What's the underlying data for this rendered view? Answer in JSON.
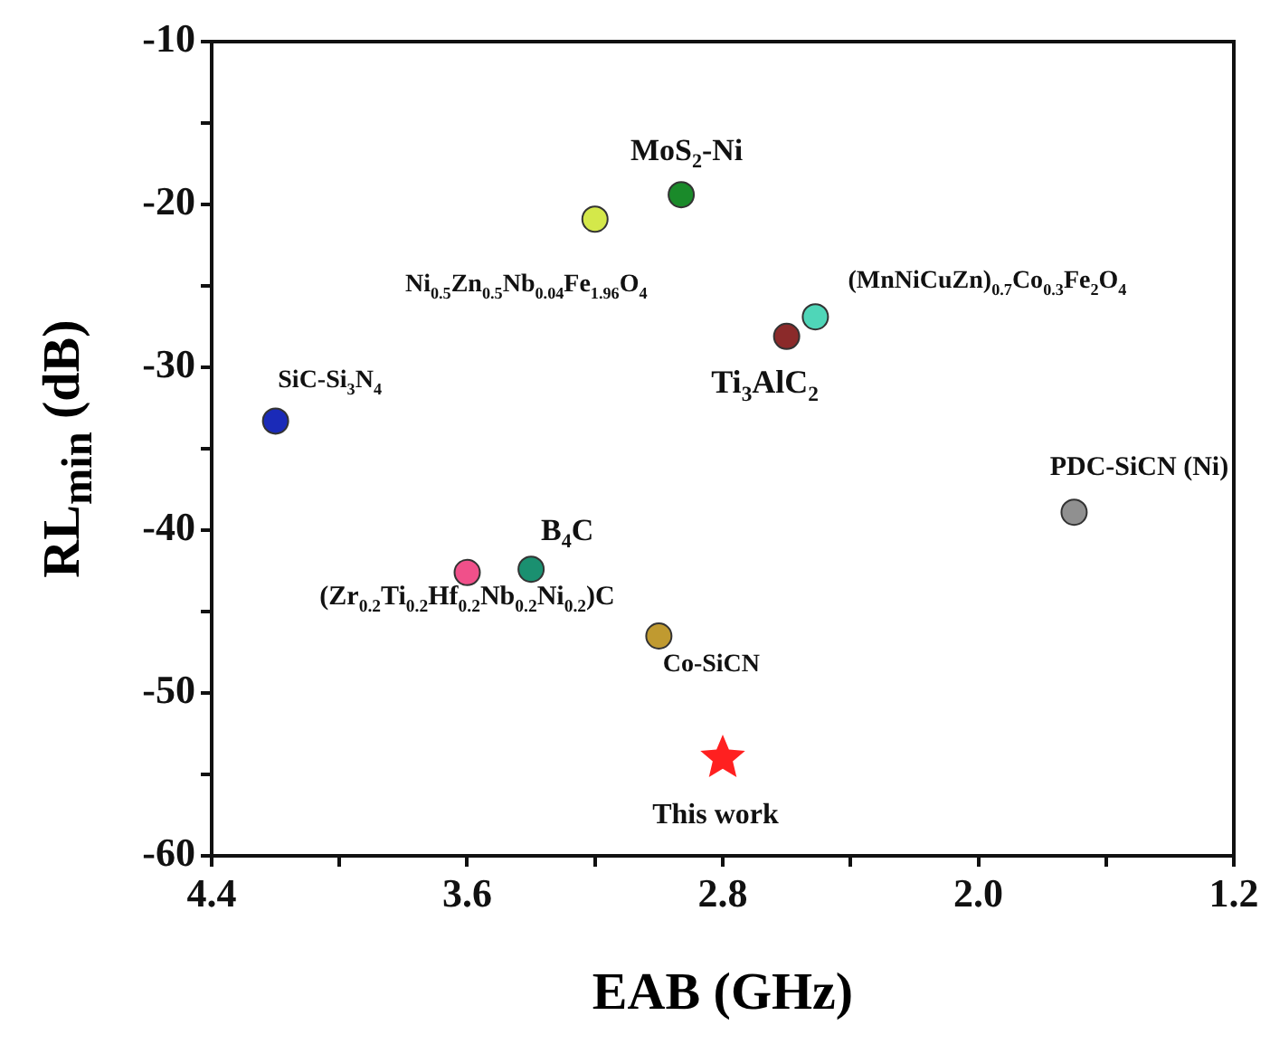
{
  "chart_data": {
    "type": "scatter",
    "xlabel": "EAB (GHz)",
    "ylabel": "RL$_{min}$ (dB)",
    "xlim": [
      4.4,
      1.2
    ],
    "xticks": [
      4.4,
      {
        "value": 4.0,
        "label": null
      },
      3.6,
      {
        "value": 3.2,
        "label": null
      },
      2.8,
      {
        "value": 2.4,
        "label": null
      },
      {
        "value": 2.0,
        "label": "2.0"
      },
      {
        "value": 1.6,
        "label": null
      },
      1.2
    ],
    "ylim": [
      -60,
      -10
    ],
    "yticks": [
      -60,
      {
        "value": -55,
        "label": null
      },
      -50,
      {
        "value": -45,
        "label": null
      },
      -40,
      {
        "value": -35,
        "label": null
      },
      -30,
      {
        "value": -25,
        "label": null
      },
      -20,
      {
        "value": -15,
        "label": null
      },
      -10
    ],
    "grid": false,
    "legend": false,
    "marker": "circle",
    "series": [
      {
        "name": "MoS$_{2}$-Ni",
        "color": "#1a8a2a",
        "x": [
          2.93
        ],
        "values": [
          -19.4
        ]
      },
      {
        "name": "Ni$_{0.5}$Zn$_{0.5}$Nb$_{0.04}$Fe$_{1.96}$O$_{4}$",
        "color": "#d4e84a",
        "x": [
          3.2
        ],
        "values": [
          -20.9
        ]
      },
      {
        "name": "(MnNiCuZn)$_{0.7}$Co$_{0.3}$Fe$_{2}$O$_{4}$",
        "color": "#4fd6b8",
        "x": [
          2.51
        ],
        "values": [
          -26.9
        ]
      },
      {
        "name": "Ti$_{3}$AlC$_{2}$",
        "color": "#8b2a2a",
        "x": [
          2.6
        ],
        "values": [
          -28.1
        ]
      },
      {
        "name": "SiC-Si$_{3}$N$_{4}$",
        "color": "#1a2ab8",
        "x": [
          4.2
        ],
        "values": [
          -33.3
        ]
      },
      {
        "name": "PDC-SiCN (Ni)",
        "color": "#909090",
        "x": [
          1.7
        ],
        "values": [
          -38.9
        ]
      },
      {
        "name": "(Zr$_{0.2}$Ti$_{0.2}$Hf$_{0.2}$Nb$_{0.2}$Ni$_{0.2}$)C",
        "color": "#f0508a",
        "x": [
          3.6
        ],
        "values": [
          -42.6
        ]
      },
      {
        "name": "B$_{4}$C",
        "color": "#1a9070",
        "x": [
          3.4
        ],
        "values": [
          -42.4
        ]
      },
      {
        "name": "Co-SiCN",
        "color": "#c09a30",
        "x": [
          3.0
        ],
        "values": [
          -46.5
        ]
      },
      {
        "name": "This work",
        "color": "#ff2020",
        "x": [
          2.8
        ],
        "values": [
          -54
        ],
        "marker": "star"
      }
    ]
  }
}
